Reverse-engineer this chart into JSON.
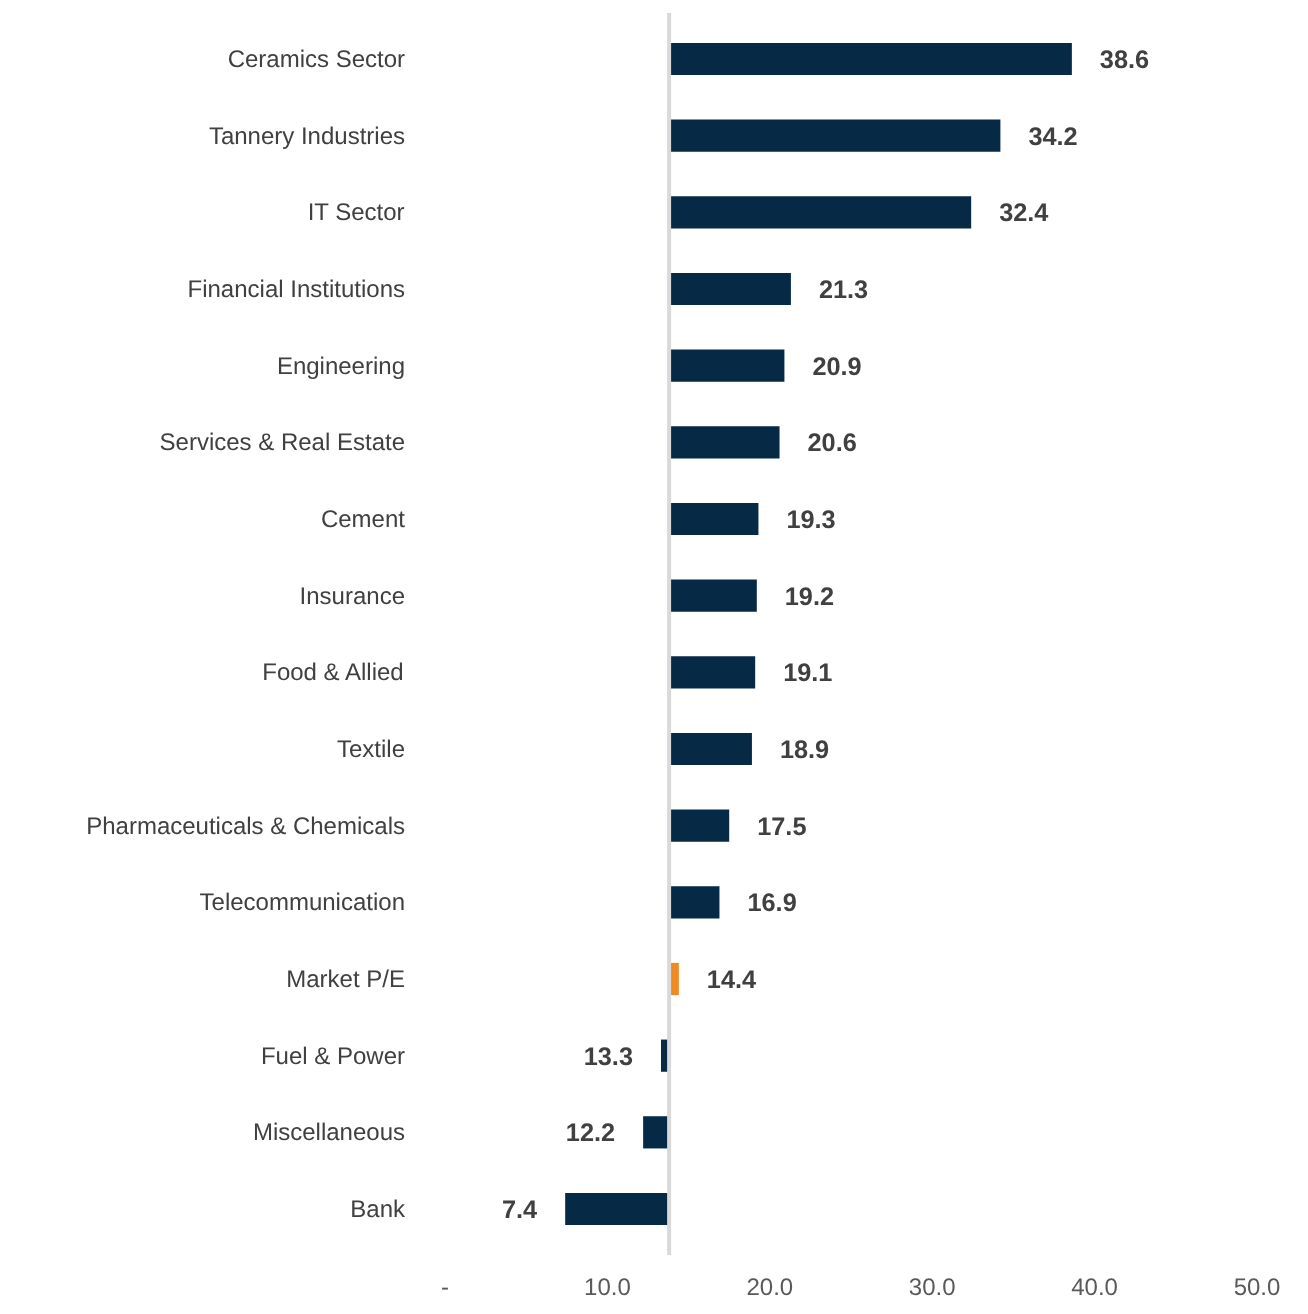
{
  "chart_data": {
    "type": "bar",
    "orientation": "horizontal",
    "categories": [
      "Ceramics Sector",
      "Tannery Industries",
      "IT Sector",
      "Financial Institutions",
      "Engineering",
      "Services & Real Estate",
      "Cement",
      "Insurance",
      "Food & Allied",
      "Textile",
      "Pharmaceuticals & Chemicals",
      "Telecommunication",
      "Market P/E",
      "Fuel & Power",
      "Miscellaneous",
      "Bank"
    ],
    "base": [
      13.8,
      13.8,
      13.8,
      13.8,
      13.8,
      13.8,
      13.8,
      13.8,
      13.8,
      13.8,
      13.8,
      13.8,
      13.8,
      13.8,
      13.8,
      13.8
    ],
    "values": [
      24.8,
      20.4,
      18.6,
      7.5,
      7.1,
      6.8,
      5.5,
      5.4,
      5.3,
      5.1,
      3.7,
      3.1,
      0.6,
      -0.5,
      -1.6,
      -6.4
    ],
    "value_labels": [
      "38.6",
      "34.2",
      "32.4",
      "21.3",
      "20.9",
      "20.6",
      "19.3",
      "19.2",
      "19.1",
      "18.9",
      "17.5",
      "16.9",
      "14.4",
      "13.3",
      "12.2",
      "7.4"
    ],
    "colors": [
      "#062a45",
      "#062a45",
      "#062a45",
      "#062a45",
      "#062a45",
      "#062a45",
      "#062a45",
      "#062a45",
      "#062a45",
      "#062a45",
      "#062a45",
      "#062a45",
      "#f08a24",
      "#062a45",
      "#062a45",
      "#062a45"
    ],
    "xlim": [
      0,
      50
    ],
    "xticks": [
      {
        "value": 0,
        "label": "-"
      },
      {
        "value": 10,
        "label": "10.0"
      },
      {
        "value": 20,
        "label": "20.0"
      },
      {
        "value": 30,
        "label": "30.0"
      },
      {
        "value": 40,
        "label": "40.0"
      },
      {
        "value": 50,
        "label": "50.0"
      }
    ],
    "ref_lines": [
      {
        "axis": "x",
        "value": 13.8,
        "color": "#d9d9d9"
      }
    ],
    "grid": false
  }
}
